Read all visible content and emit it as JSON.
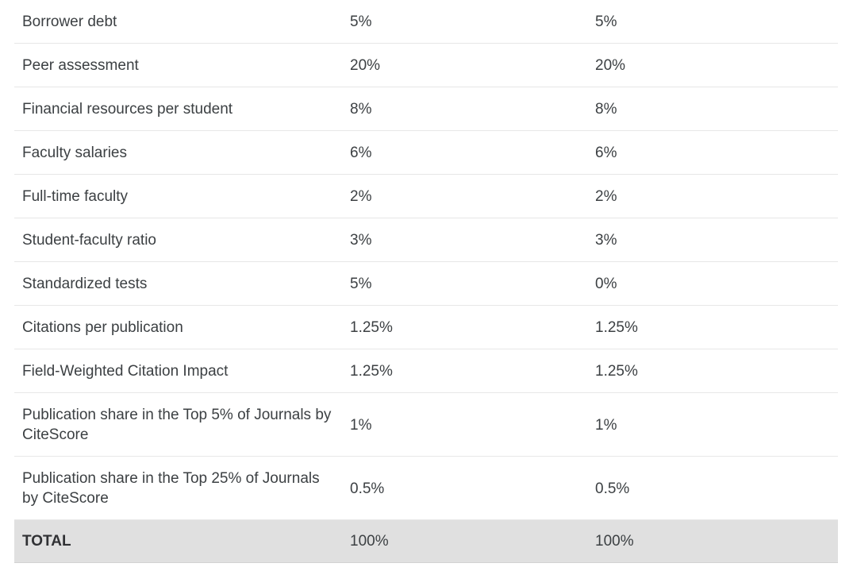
{
  "colors": {
    "text": "#3c4043",
    "total_text": "#303134",
    "divider": "#e7e7e7",
    "total_row_background": "#e0e0e0",
    "page_background": "#ffffff"
  },
  "table": {
    "columns": [
      "indicator",
      "weight_column_1",
      "weight_column_2"
    ],
    "rows": [
      {
        "indicator": "Borrower debt",
        "value1": "5%",
        "value2": "5%",
        "total": false
      },
      {
        "indicator": "Peer assessment",
        "value1": "20%",
        "value2": "20%",
        "total": false
      },
      {
        "indicator": "Financial resources per student",
        "value1": "8%",
        "value2": "8%",
        "total": false
      },
      {
        "indicator": "Faculty salaries",
        "value1": "6%",
        "value2": "6%",
        "total": false
      },
      {
        "indicator": "Full-time faculty",
        "value1": "2%",
        "value2": "2%",
        "total": false
      },
      {
        "indicator": "Student-faculty ratio",
        "value1": "3%",
        "value2": "3%",
        "total": false
      },
      {
        "indicator": "Standardized tests",
        "value1": "5%",
        "value2": "0%",
        "total": false
      },
      {
        "indicator": "Citations per publication",
        "value1": "1.25%",
        "value2": "1.25%",
        "total": false
      },
      {
        "indicator": "Field-Weighted Citation Impact",
        "value1": "1.25%",
        "value2": "1.25%",
        "total": false
      },
      {
        "indicator": "Publication share in the Top 5% of Journals by CiteScore",
        "value1": "1%",
        "value2": "1%",
        "total": false
      },
      {
        "indicator": "Publication share in the Top 25% of Journals by CiteScore",
        "value1": "0.5%",
        "value2": "0.5%",
        "total": false
      },
      {
        "indicator": "TOTAL",
        "value1": "100%",
        "value2": "100%",
        "total": true
      }
    ]
  }
}
